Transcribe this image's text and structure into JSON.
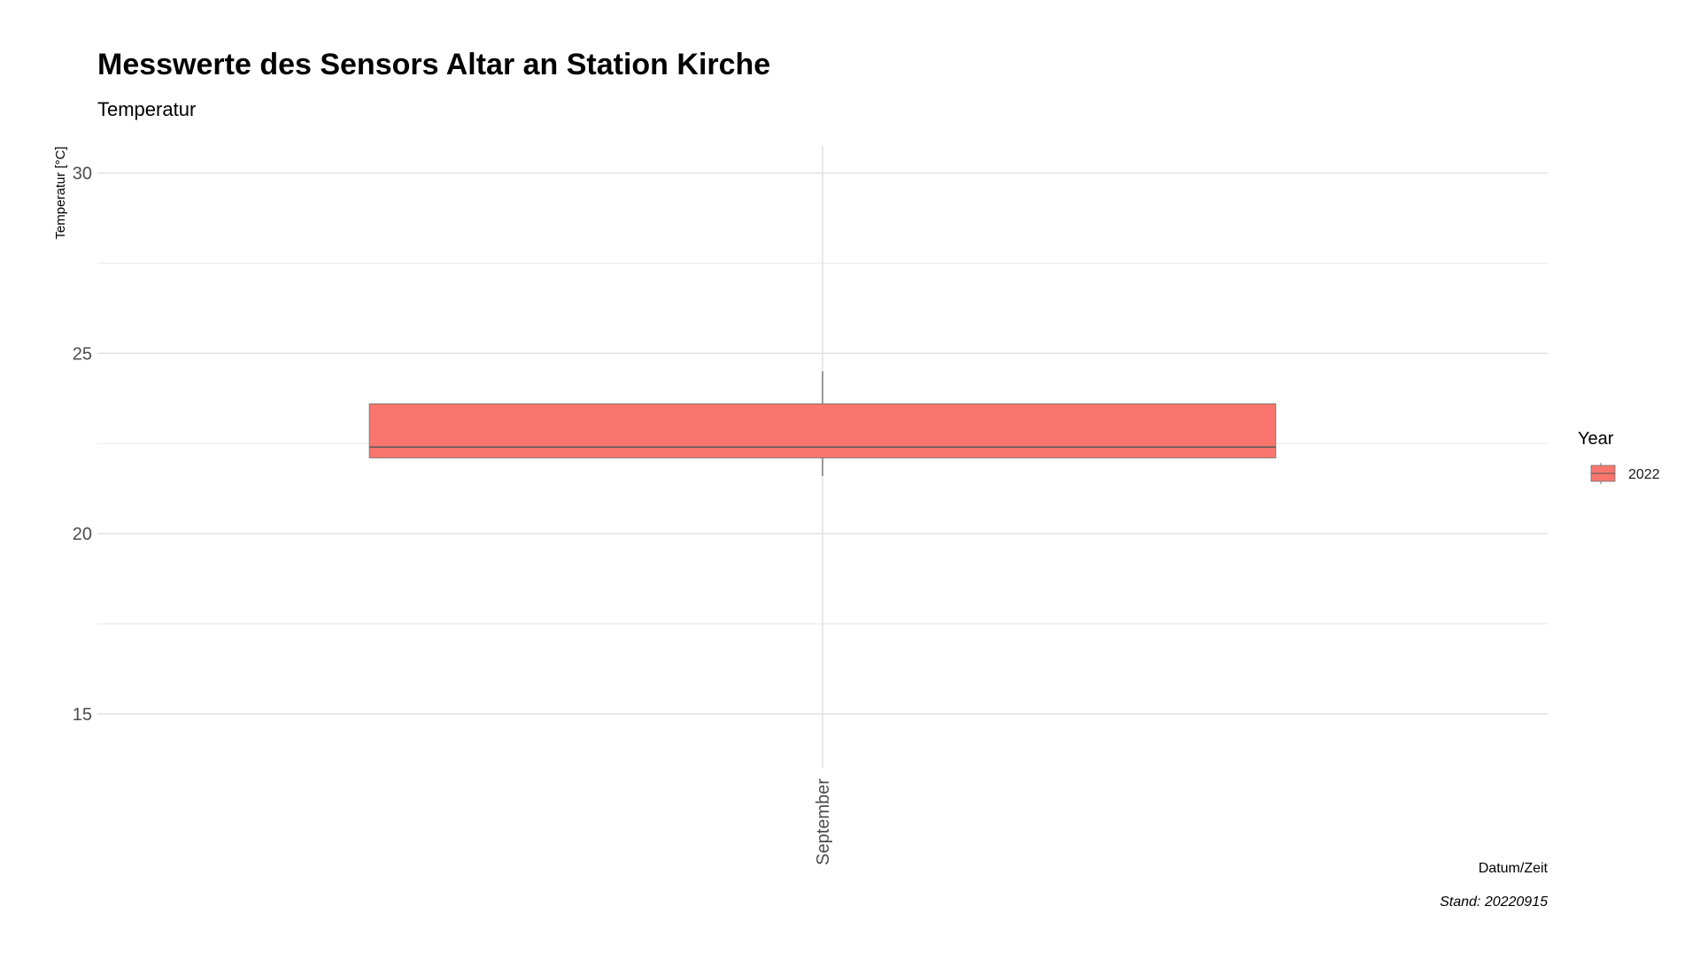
{
  "chart_data": {
    "type": "box",
    "title": "Messwerte des Sensors Altar an Station Kirche",
    "subtitle": "Temperatur",
    "xlabel": "Datum/Zeit",
    "ylabel": "Temperatur [°C]",
    "caption": "Stand: 20220915",
    "categories": [
      "September"
    ],
    "ylim": [
      13.5,
      30.75
    ],
    "yticks": [
      15,
      20,
      25,
      30
    ],
    "y_minor_ticks": [
      17.5,
      22.5,
      27.5
    ],
    "grid": true,
    "legend": {
      "title": "Year",
      "position": "right",
      "entries": [
        "2022"
      ]
    },
    "series": [
      {
        "name": "2022",
        "color": "#F8766D",
        "boxes": [
          {
            "category": "September",
            "min": 21.6,
            "q1": 22.1,
            "median": 22.4,
            "q3": 23.6,
            "max": 24.5
          }
        ]
      }
    ]
  }
}
